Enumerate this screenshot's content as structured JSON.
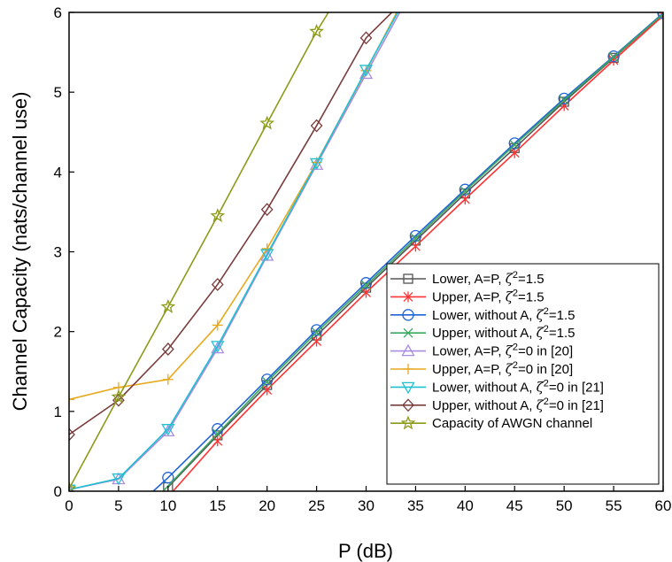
{
  "chart_data": {
    "type": "line",
    "xlabel": "P (dB)",
    "ylabel": "Channel Capacity (nats/channel use)",
    "xlim": [
      0,
      60
    ],
    "ylim": [
      0,
      6
    ],
    "xticks": [
      0,
      5,
      10,
      15,
      20,
      25,
      30,
      35,
      40,
      45,
      50,
      55,
      60
    ],
    "yticks": [
      0,
      1,
      2,
      3,
      4,
      5,
      6
    ],
    "grid": false,
    "legend_position": "bottom-right",
    "series": [
      {
        "name": "Lower, A=P, ζ²=1.5",
        "legend_text": "Lower, A=P, ",
        "legend_sup_text": "=1.5",
        "color": "#555555",
        "marker": "square",
        "x": [
          10,
          15,
          20,
          25,
          30,
          35,
          40,
          45,
          50,
          55,
          60
        ],
        "y": [
          0.05,
          0.7,
          1.33,
          1.95,
          2.55,
          3.14,
          3.73,
          4.3,
          4.88,
          5.43,
          5.98
        ]
      },
      {
        "name": "Upper, A=P, ζ²=1.5",
        "legend_text": "Upper, A=P, ",
        "legend_sup_text": "=1.5",
        "color": "#ff3333",
        "marker": "asterisk",
        "x": [
          10.5,
          15,
          20,
          25,
          30,
          35,
          40,
          45,
          50,
          55,
          60
        ],
        "y": [
          0,
          0.63,
          1.27,
          1.88,
          2.49,
          3.07,
          3.66,
          4.24,
          4.83,
          5.4,
          5.96
        ]
      },
      {
        "name": "Lower, without A, ζ²=1.5",
        "legend_text": "Lower, without A, ",
        "legend_sup_text": "=1.5",
        "color": "#1f63d6",
        "marker": "circle",
        "x": [
          8.5,
          10,
          15,
          20,
          25,
          30,
          35,
          40,
          45,
          50,
          55,
          60
        ],
        "y": [
          0,
          0.17,
          0.78,
          1.4,
          2.02,
          2.61,
          3.2,
          3.78,
          4.36,
          4.92,
          5.45,
          5.99
        ]
      },
      {
        "name": "Upper, without A, ζ²=1.5",
        "legend_text": "Upper, without A, ",
        "legend_sup_text": "=1.5",
        "color": "#3aa860",
        "marker": "x",
        "x": [
          9.5,
          15,
          20,
          25,
          30,
          35,
          40,
          45,
          50,
          55,
          60
        ],
        "y": [
          0,
          0.72,
          1.37,
          1.99,
          2.58,
          3.17,
          3.76,
          4.34,
          4.9,
          5.44,
          5.98
        ]
      },
      {
        "name": "Lower, A=P, ζ²=0 in [20]",
        "legend_text": "Lower, A=P, ",
        "legend_sup_text": "=0 in [20]",
        "color": "#a98be0",
        "marker": "triangle-up",
        "x": [
          0,
          5,
          10,
          15,
          20,
          25,
          30,
          33.4
        ],
        "y": [
          0.02,
          0.15,
          0.75,
          1.79,
          2.95,
          4.09,
          5.23,
          6
        ]
      },
      {
        "name": "Upper, A=P, ζ²=0 in [20]",
        "legend_text": "Upper, A=P, ",
        "legend_sup_text": "=0 in [20]",
        "color": "#e6a81c",
        "marker": "plus",
        "x": [
          0,
          5,
          10,
          15,
          20,
          25,
          30,
          33.1
        ],
        "y": [
          1.15,
          1.3,
          1.4,
          2.08,
          3.04,
          4.12,
          5.27,
          6
        ]
      },
      {
        "name": "Lower, without A, ζ²=0 in [21]",
        "legend_text": "Lower, without A, ",
        "legend_sup_text": "=0 in [21]",
        "color": "#1fc1d1",
        "marker": "triangle-down",
        "x": [
          0,
          5,
          10,
          15,
          20,
          25,
          30,
          33.2
        ],
        "y": [
          0.02,
          0.16,
          0.78,
          1.82,
          2.97,
          4.11,
          5.28,
          6
        ]
      },
      {
        "name": "Upper, without A, ζ²=0 in [21]",
        "legend_text": "Upper, without A, ",
        "legend_sup_text": "=0 in [21]",
        "color": "#7a3c3c",
        "marker": "diamond",
        "x": [
          0,
          5,
          10,
          15,
          20,
          25,
          30,
          32.6
        ],
        "y": [
          0.71,
          1.14,
          1.78,
          2.59,
          3.53,
          4.58,
          5.68,
          6
        ]
      },
      {
        "name": "Capacity of AWGN channel",
        "legend_text": "Capacity of AWGN channel",
        "legend_sup_text": "",
        "color": "#8c9a1a",
        "marker": "star",
        "x": [
          0,
          5,
          10,
          15,
          20,
          25,
          26.2
        ],
        "y": [
          0.03,
          1.18,
          2.31,
          3.45,
          4.61,
          5.76,
          6
        ]
      }
    ]
  }
}
